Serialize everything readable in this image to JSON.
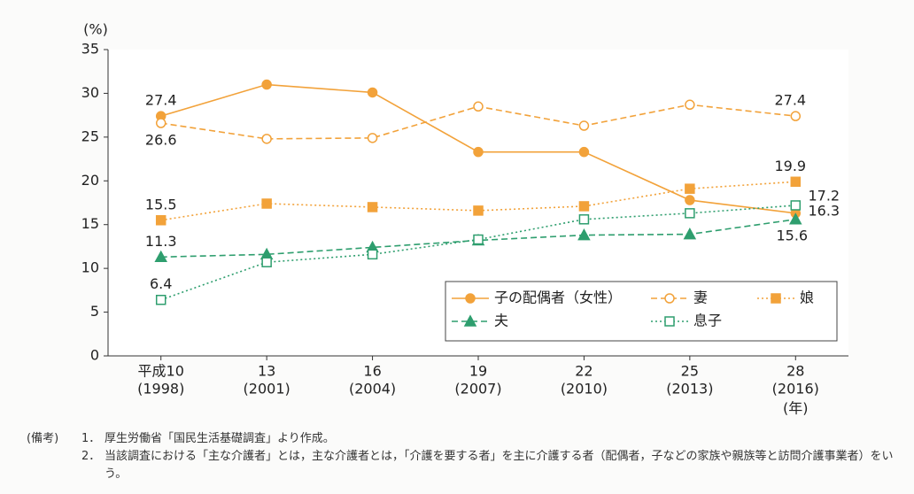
{
  "chart_data": {
    "type": "line",
    "y_unit": "(%)",
    "x_unit": "(年)",
    "categories": [
      "平成10",
      "13",
      "16",
      "19",
      "22",
      "25",
      "28"
    ],
    "category_years": [
      "(1998)",
      "(2001)",
      "(2004)",
      "(2007)",
      "(2010)",
      "(2013)",
      "(2016)"
    ],
    "ylim": [
      0,
      35
    ],
    "yticks": [
      0,
      5,
      10,
      15,
      20,
      25,
      30,
      35
    ],
    "grid": false,
    "series": [
      {
        "name": "子の配偶者（女性）",
        "color": "#f2a23a",
        "marker": "circle",
        "filled": true,
        "dash": "solid",
        "values": [
          27.4,
          31.0,
          30.1,
          23.3,
          23.3,
          17.8,
          16.3
        ],
        "value_labels": [
          "27.4",
          null,
          null,
          null,
          null,
          null,
          "16.3"
        ]
      },
      {
        "name": "妻",
        "color": "#f2a23a",
        "marker": "circle",
        "filled": false,
        "dash": "dashed",
        "values": [
          26.6,
          24.8,
          24.9,
          28.5,
          26.3,
          28.7,
          27.4
        ],
        "value_labels": [
          "26.6",
          null,
          null,
          null,
          null,
          null,
          "27.4"
        ]
      },
      {
        "name": "娘",
        "color": "#f2a23a",
        "marker": "square",
        "filled": true,
        "dash": "dotted",
        "values": [
          15.5,
          17.4,
          17.0,
          16.6,
          17.1,
          19.1,
          19.9
        ],
        "value_labels": [
          "15.5",
          null,
          null,
          null,
          null,
          null,
          "19.9"
        ]
      },
      {
        "name": "夫",
        "color": "#2e9e6e",
        "marker": "triangle",
        "filled": true,
        "dash": "dashed",
        "values": [
          11.3,
          11.6,
          12.4,
          13.2,
          13.8,
          13.9,
          15.6
        ],
        "value_labels": [
          "11.3",
          null,
          null,
          null,
          null,
          null,
          "15.6"
        ]
      },
      {
        "name": "息子",
        "color": "#2e9e6e",
        "marker": "square",
        "filled": false,
        "dash": "dotted",
        "values": [
          6.4,
          10.7,
          11.6,
          13.3,
          15.6,
          16.3,
          17.2
        ],
        "value_labels": [
          "6.4",
          null,
          null,
          null,
          null,
          null,
          "17.2"
        ]
      }
    ],
    "notes_label": "(備考)",
    "notes": [
      {
        "number": "1．",
        "text": "厚生労働省「国民生活基礎調査」より作成。"
      },
      {
        "number": "2．",
        "text": "当該調査における「主な介護者」とは，主な介護者とは，「介護を要する者」を主に介護する者（配偶者，子などの家族や親族等と訪問介護事業者）をいう。"
      }
    ]
  }
}
